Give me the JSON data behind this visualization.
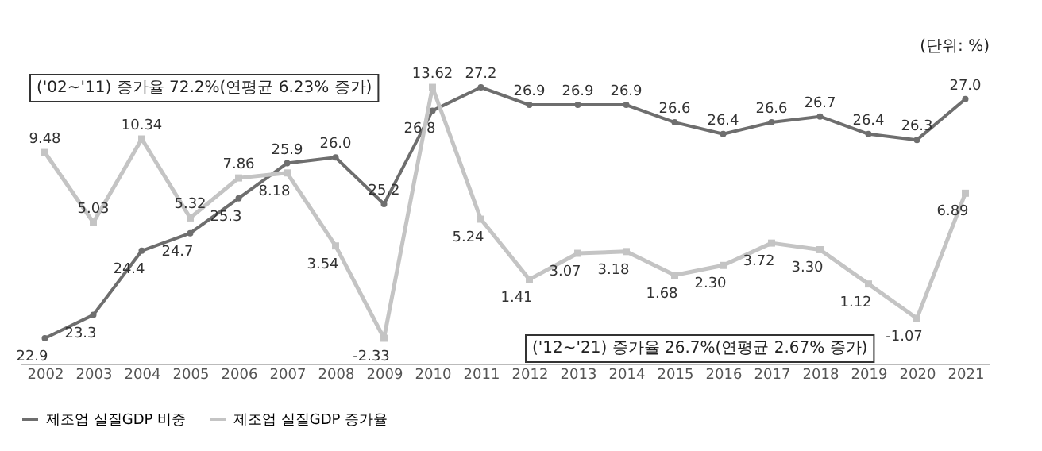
{
  "chart_data": {
    "type": "line",
    "categories": [
      "2002",
      "2003",
      "2004",
      "2005",
      "2006",
      "2007",
      "2008",
      "2009",
      "2010",
      "2011",
      "2012",
      "2013",
      "2014",
      "2015",
      "2016",
      "2017",
      "2018",
      "2019",
      "2020",
      "2021"
    ],
    "series": [
      {
        "name": "제조업 실질GDP 비중",
        "color": "#6e6e6e",
        "marker": "circle",
        "values": [
          22.9,
          23.3,
          24.4,
          24.7,
          25.3,
          25.9,
          26.0,
          25.2,
          26.8,
          27.2,
          26.9,
          26.9,
          26.9,
          26.6,
          26.4,
          26.6,
          26.7,
          26.4,
          26.3,
          27.0
        ],
        "value_labels": [
          "22.9",
          "23.3",
          "24.4",
          "24.7",
          "25.3",
          "25.9",
          "26.0",
          "25.2",
          "26.8",
          "27.2",
          "26.9",
          "26.9",
          "26.9",
          "26.6",
          "26.4",
          "26.6",
          "26.7",
          "26.4",
          "26.3",
          "27.0"
        ]
      },
      {
        "name": "제조업 실질GDP 증가율",
        "color": "#c4c4c4",
        "marker": "square",
        "axis": "y2",
        "values": [
          9.48,
          5.03,
          10.34,
          5.32,
          7.86,
          8.18,
          3.54,
          -2.33,
          13.62,
          5.24,
          1.41,
          3.07,
          3.18,
          1.68,
          2.3,
          3.72,
          3.3,
          1.12,
          -1.07,
          6.89
        ],
        "value_labels": [
          "9.48",
          "5.03",
          "10.34",
          "5.32",
          "7.86",
          "8.18",
          "3.54",
          "-2.33",
          "13.62",
          "5.24",
          "1.41",
          "3.07",
          "3.18",
          "1.68",
          "2.30",
          "3.72",
          "3.30",
          "1.12",
          "-1.07",
          "6.89"
        ]
      }
    ],
    "tick_labels": "x",
    "grid": false,
    "legend": "bottom",
    "annotations": [
      "('02~'11) 증가율 72.2%(연평균 6.23% 증가)",
      "('12~'21) 증가율 26.7%(연평균 2.67% 증가)",
      "(단위: %)"
    ]
  }
}
